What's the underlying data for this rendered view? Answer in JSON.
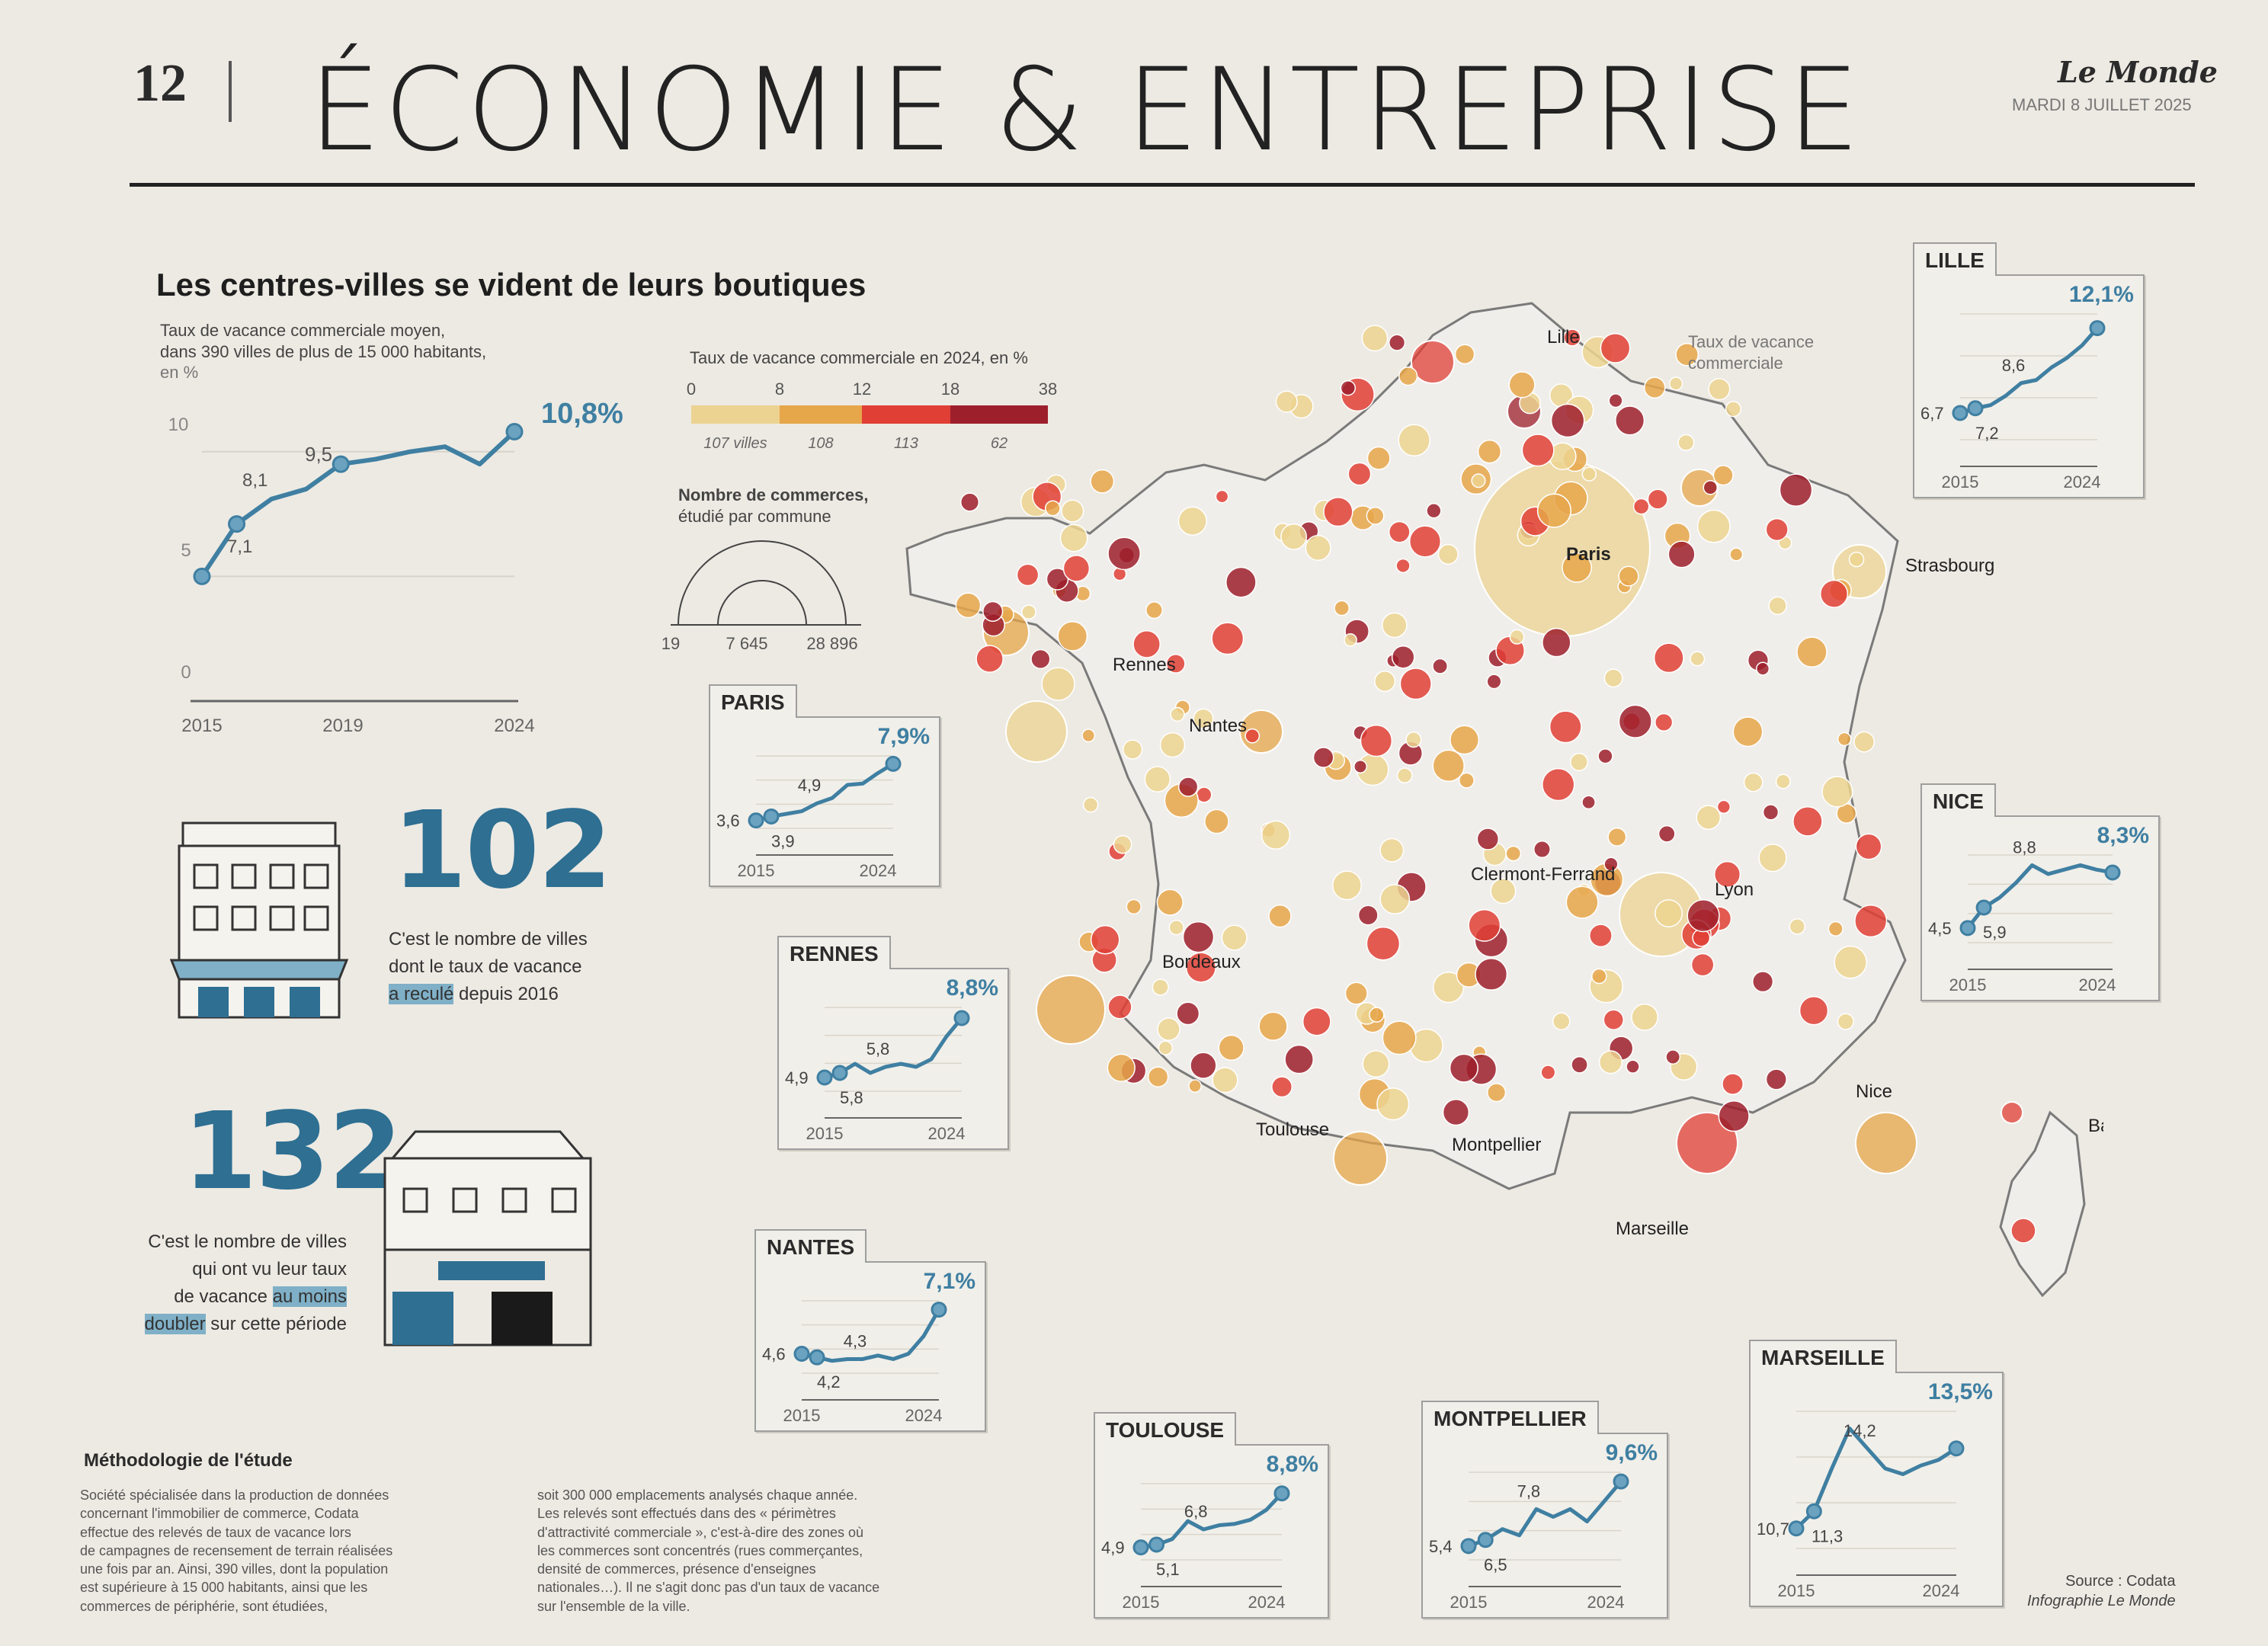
{
  "header": {
    "page_number": "12",
    "section": "ÉCONOMIE & ENTREPRISE",
    "brand": "Le Monde",
    "date": "MARDI 8 JUILLET 2025"
  },
  "title": "Les centres-villes se vident de leurs boutiques",
  "national_chart": {
    "caption_line1": "Taux de vacance commerciale moyen,",
    "caption_line2": "dans 390 villes de plus de 15 000 habitants,",
    "caption_line3": "en %",
    "end_label": "10,8%",
    "labels": [
      "7,1",
      "8,1",
      "9,5"
    ],
    "y_ticks": [
      "10",
      "5",
      "0"
    ],
    "x_ticks": [
      "2015",
      "2019",
      "2024"
    ]
  },
  "legend": {
    "rate_caption": "Taux de vacance commerciale en 2024, en %",
    "bins": [
      {
        "from": "0",
        "count": "107 villes",
        "color": "#ecd391"
      },
      {
        "from": "8",
        "count": "108",
        "color": "#e6a64a"
      },
      {
        "from": "12",
        "count": "113",
        "color": "#e03f36"
      },
      {
        "from": "18",
        "count": "62",
        "color": "#9e1f2c"
      }
    ],
    "max": "38",
    "size_caption_line1": "Nombre de commerces,",
    "size_caption_line2": "étudié par commune",
    "size_ticks": [
      "19",
      "7 645",
      "28 896"
    ]
  },
  "stats": [
    {
      "number": "102",
      "line1": "C'est le nombre de villes",
      "line2": "dont le taux de vacance",
      "highlight": "a reculé",
      "rest": " depuis 2016"
    },
    {
      "number": "132",
      "line1": "C'est le nombre de villes",
      "line2": "qui ont vu leur taux",
      "line3_pre": "de vacance ",
      "highlight1": "au moins",
      "highlight2": "doubler",
      "rest": " sur cette période"
    }
  ],
  "methodology": {
    "title": "Méthodologie de l'étude",
    "col1": [
      "Société spécialisée dans la production de données",
      "concernant l'immobilier de commerce, Codata",
      "effectue des relevés de taux de vacance lors",
      "de campagnes de recensement de terrain réalisées",
      "une fois par an. Ainsi, 390 villes, dont la population",
      "est supérieure à 15 000 habitants, ainsi que les",
      "commerces de périphérie, sont étudiées,"
    ],
    "col2": [
      "soit 300 000 emplacements analysés chaque année.",
      "Les relevés sont effectués dans des « périmètres",
      "d'attractivité commerciale », c'est-à-dire des zones où",
      "les commerces sont concentrés (rues commerçantes,",
      "densité de commerces, présence d'enseignes",
      "nationales…). Il ne s'agit donc pas d'un taux de vacance",
      "sur l'ensemble de la ville."
    ]
  },
  "source": {
    "line1": "Source : Codata",
    "line2": "Infographie Le Monde"
  },
  "map": {
    "cities": [
      "Lille",
      "Paris",
      "Strasbourg",
      "Rennes",
      "Nantes",
      "Clermont-Ferrand",
      "Lyon",
      "Bordeaux",
      "Toulouse",
      "Montpellier",
      "Marseille",
      "Nice",
      "Bastia"
    ]
  },
  "cards": [
    {
      "city": "LILLE",
      "end_label": "12,1%",
      "labels": [
        "6,7",
        "7,2",
        "8,6"
      ],
      "x_ticks": [
        "2015",
        "2024"
      ],
      "note": "Taux de vacance commerciale"
    },
    {
      "city": "PARIS",
      "end_label": "7,9%",
      "labels": [
        "3,6",
        "3,9",
        "4,9"
      ],
      "x_ticks": [
        "2015",
        "2024"
      ]
    },
    {
      "city": "RENNES",
      "end_label": "8,8%",
      "labels": [
        "4,9",
        "5,8",
        "5,8"
      ],
      "x_ticks": [
        "2015",
        "2024"
      ]
    },
    {
      "city": "NANTES",
      "end_label": "7,1%",
      "labels": [
        "4,6",
        "4,2",
        "4,3"
      ],
      "x_ticks": [
        "2015",
        "2024"
      ]
    },
    {
      "city": "NICE",
      "end_label": "8,3%",
      "labels": [
        "4,5",
        "5,9",
        "8,8"
      ],
      "x_ticks": [
        "2015",
        "2024"
      ]
    },
    {
      "city": "TOULOUSE",
      "end_label": "8,8%",
      "labels": [
        "4,9",
        "5,1",
        "6,8"
      ],
      "x_ticks": [
        "2015",
        "2024"
      ]
    },
    {
      "city": "MONTPELLIER",
      "end_label": "9,6%",
      "labels": [
        "5,4",
        "6,5",
        "7,8"
      ],
      "x_ticks": [
        "2015",
        "2024"
      ]
    },
    {
      "city": "MARSEILLE",
      "end_label": "13,5%",
      "labels": [
        "10,7",
        "11,3",
        "14,2"
      ],
      "x_ticks": [
        "2015",
        "2024"
      ]
    }
  ],
  "chart_data": [
    {
      "type": "line",
      "title": "Taux de vacance commerciale moyen, dans 390 villes de plus de 15 000 habitants, en %",
      "x": [
        2015,
        2016,
        2017,
        2018,
        2019,
        2020,
        2021,
        2022,
        2023,
        2024
      ],
      "series": [
        {
          "values": [
            5,
            7.1,
            8.1,
            8.5,
            9.5,
            9.7,
            10.0,
            10.2,
            9.5,
            10.8
          ]
        }
      ],
      "ylim": [
        0,
        11
      ],
      "xlim": [
        2015,
        2024
      ]
    },
    {
      "type": "line",
      "title": "LILLE",
      "x": [
        2015,
        2016,
        2017,
        2018,
        2019,
        2020,
        2021,
        2022,
        2023,
        2024
      ],
      "series": [
        {
          "values": [
            6.7,
            7.0,
            7.2,
            7.8,
            8.6,
            8.8,
            9.6,
            10.2,
            11.0,
            12.1
          ]
        }
      ],
      "ylim": [
        5,
        13
      ]
    },
    {
      "type": "line",
      "title": "PARIS",
      "x": [
        2015,
        2016,
        2017,
        2018,
        2019,
        2020,
        2021,
        2022,
        2023,
        2024
      ],
      "series": [
        {
          "values": [
            3.6,
            3.9,
            4.1,
            4.3,
            4.9,
            5.3,
            6.3,
            6.4,
            7.2,
            7.9
          ]
        }
      ],
      "ylim": [
        3,
        8.5
      ]
    },
    {
      "type": "line",
      "title": "RENNES",
      "x": [
        2015,
        2016,
        2017,
        2018,
        2019,
        2020,
        2021,
        2022,
        2023,
        2024
      ],
      "series": [
        {
          "values": [
            4.9,
            5.2,
            5.8,
            5.2,
            5.6,
            5.8,
            5.6,
            6.1,
            7.6,
            8.8
          ]
        }
      ],
      "ylim": [
        4,
        9.5
      ]
    },
    {
      "type": "line",
      "title": "NANTES",
      "x": [
        2015,
        2016,
        2017,
        2018,
        2019,
        2020,
        2021,
        2022,
        2023,
        2024
      ],
      "series": [
        {
          "values": [
            4.6,
            4.4,
            4.2,
            4.3,
            4.3,
            4.5,
            4.3,
            4.6,
            5.6,
            7.1
          ]
        }
      ],
      "ylim": [
        3.5,
        7.6
      ]
    },
    {
      "type": "line",
      "title": "NICE",
      "x": [
        2015,
        2016,
        2017,
        2018,
        2019,
        2020,
        2021,
        2022,
        2023,
        2024
      ],
      "series": [
        {
          "values": [
            4.5,
            5.9,
            6.6,
            7.6,
            8.8,
            8.2,
            8.5,
            8.8,
            8.5,
            8.3
          ]
        }
      ],
      "ylim": [
        3.5,
        9.5
      ]
    },
    {
      "type": "line",
      "title": "TOULOUSE",
      "x": [
        2015,
        2016,
        2017,
        2018,
        2019,
        2020,
        2021,
        2022,
        2023,
        2024
      ],
      "series": [
        {
          "values": [
            4.9,
            5.1,
            5.5,
            6.8,
            6.2,
            6.5,
            6.6,
            6.9,
            7.6,
            8.8
          ]
        }
      ],
      "ylim": [
        4,
        9.5
      ]
    },
    {
      "type": "line",
      "title": "MONTPELLIER",
      "x": [
        2015,
        2016,
        2017,
        2018,
        2019,
        2020,
        2021,
        2022,
        2023,
        2024
      ],
      "series": [
        {
          "values": [
            5.4,
            5.8,
            6.5,
            6.1,
            7.8,
            7.3,
            7.8,
            7.0,
            8.3,
            9.6
          ]
        }
      ],
      "ylim": [
        4.5,
        10.2
      ]
    },
    {
      "type": "line",
      "title": "MARSEILLE",
      "x": [
        2015,
        2016,
        2017,
        2018,
        2019,
        2020,
        2021,
        2022,
        2023,
        2024
      ],
      "series": [
        {
          "values": [
            10.7,
            11.3,
            12.8,
            14.2,
            13.5,
            12.8,
            12.6,
            12.9,
            13.1,
            13.5
          ]
        }
      ],
      "ylim": [
        10,
        14.8
      ]
    }
  ]
}
